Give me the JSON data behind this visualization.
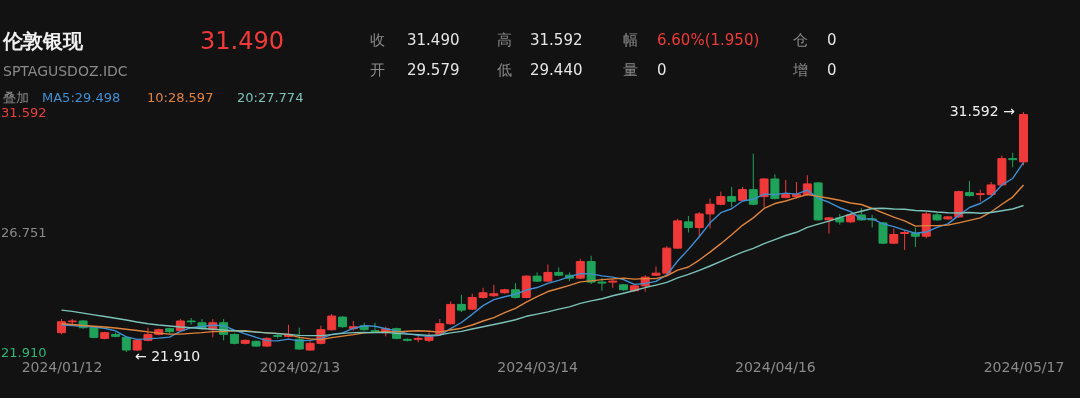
{
  "chart_data": {
    "type": "candlestick",
    "title": "伦敦银现",
    "subtitle": "SPTAGUSDOZ.IDC",
    "categories": [
      "2024/01/12",
      null,
      null,
      null,
      null,
      null,
      null,
      null,
      null,
      null,
      null,
      null,
      null,
      null,
      null,
      null,
      null,
      null,
      null,
      null,
      null,
      null,
      "2024/02/13",
      null,
      null,
      null,
      null,
      null,
      null,
      null,
      null,
      null,
      null,
      null,
      null,
      null,
      null,
      null,
      null,
      null,
      null,
      null,
      null,
      null,
      "2024/03/14",
      null,
      null,
      null,
      null,
      null,
      null,
      null,
      null,
      null,
      null,
      null,
      null,
      null,
      null,
      null,
      null,
      null,
      null,
      null,
      null,
      null,
      "2024/04/16",
      null,
      null,
      null,
      null,
      null,
      null,
      null,
      null,
      null,
      null,
      null,
      null,
      null,
      null,
      null,
      null,
      null,
      null,
      null,
      null,
      null,
      null,
      "2024/05/17"
    ],
    "ohlc": [
      [
        22.69,
        23.24,
        22.62,
        23.13
      ],
      [
        23.13,
        23.24,
        23.01,
        23.16
      ],
      [
        23.16,
        23.2,
        22.85,
        22.89
      ],
      [
        22.89,
        22.93,
        22.46,
        22.5
      ],
      [
        22.46,
        22.73,
        22.42,
        22.69
      ],
      [
        22.62,
        22.69,
        22.5,
        22.54
      ],
      [
        22.5,
        22.54,
        21.91,
        21.99
      ],
      [
        21.99,
        22.42,
        21.95,
        22.38
      ],
      [
        22.38,
        22.89,
        22.34,
        22.62
      ],
      [
        22.62,
        22.85,
        22.58,
        22.81
      ],
      [
        22.85,
        22.89,
        22.66,
        22.73
      ],
      [
        22.77,
        23.24,
        22.73,
        23.16
      ],
      [
        23.16,
        23.28,
        23.01,
        23.13
      ],
      [
        23.09,
        23.24,
        22.81,
        22.85
      ],
      [
        22.81,
        23.24,
        22.5,
        23.09
      ],
      [
        23.09,
        23.24,
        22.38,
        22.62
      ],
      [
        22.62,
        22.66,
        22.22,
        22.26
      ],
      [
        22.26,
        22.42,
        22.22,
        22.38
      ],
      [
        22.34,
        22.38,
        22.11,
        22.15
      ],
      [
        22.15,
        22.5,
        22.11,
        22.46
      ],
      [
        22.58,
        22.66,
        22.46,
        22.54
      ],
      [
        22.54,
        23.01,
        22.5,
        22.62
      ],
      [
        22.42,
        22.89,
        21.99,
        22.03
      ],
      [
        21.99,
        22.34,
        21.95,
        22.26
      ],
      [
        22.26,
        22.97,
        22.22,
        22.81
      ],
      [
        22.81,
        23.44,
        22.77,
        23.36
      ],
      [
        23.32,
        23.36,
        22.89,
        22.93
      ],
      [
        22.85,
        23.16,
        22.77,
        22.93
      ],
      [
        22.97,
        23.09,
        22.77,
        22.81
      ],
      [
        22.77,
        23.09,
        22.69,
        22.73
      ],
      [
        22.69,
        22.93,
        22.54,
        22.85
      ],
      [
        22.85,
        22.89,
        22.42,
        22.46
      ],
      [
        22.42,
        22.46,
        22.34,
        22.38
      ],
      [
        22.42,
        22.62,
        22.3,
        22.46
      ],
      [
        22.38,
        22.69,
        22.3,
        22.54
      ],
      [
        22.62,
        23.24,
        22.58,
        23.05
      ],
      [
        23.05,
        23.95,
        23.01,
        23.83
      ],
      [
        23.83,
        24.22,
        23.52,
        23.6
      ],
      [
        23.64,
        24.26,
        23.6,
        24.11
      ],
      [
        24.11,
        24.5,
        24.07,
        24.3
      ],
      [
        24.18,
        24.62,
        24.14,
        24.26
      ],
      [
        24.3,
        24.46,
        24.26,
        24.42
      ],
      [
        24.42,
        24.69,
        24.07,
        24.11
      ],
      [
        24.11,
        25.01,
        24.07,
        24.97
      ],
      [
        24.97,
        25.12,
        24.73,
        24.77
      ],
      [
        24.77,
        25.44,
        24.73,
        25.12
      ],
      [
        25.12,
        25.32,
        24.97,
        25.01
      ],
      [
        25.01,
        25.12,
        24.77,
        24.89
      ],
      [
        24.89,
        25.67,
        24.85,
        25.56
      ],
      [
        25.56,
        25.79,
        24.65,
        24.73
      ],
      [
        24.73,
        24.89,
        24.38,
        24.69
      ],
      [
        24.73,
        24.85,
        24.5,
        24.77
      ],
      [
        24.62,
        24.65,
        24.38,
        24.42
      ],
      [
        24.38,
        24.62,
        24.34,
        24.58
      ],
      [
        24.58,
        25.01,
        24.34,
        24.93
      ],
      [
        25.01,
        25.36,
        24.97,
        25.09
      ],
      [
        25.09,
        26.18,
        25.05,
        26.1
      ],
      [
        26.1,
        27.28,
        26.07,
        27.2
      ],
      [
        27.16,
        27.4,
        26.73,
        26.93
      ],
      [
        26.93,
        27.56,
        26.54,
        27.48
      ],
      [
        27.48,
        28.1,
        26.89,
        27.87
      ],
      [
        27.87,
        28.38,
        27.83,
        28.18
      ],
      [
        28.18,
        28.57,
        27.75,
        27.99
      ],
      [
        28.03,
        28.57,
        27.99,
        28.46
      ],
      [
        28.46,
        29.91,
        27.83,
        27.87
      ],
      [
        28.18,
        28.93,
        27.75,
        28.89
      ],
      [
        28.89,
        29.08,
        28.06,
        28.1
      ],
      [
        28.14,
        28.85,
        28.1,
        28.26
      ],
      [
        28.18,
        28.77,
        28.1,
        28.26
      ],
      [
        28.26,
        29.04,
        28.22,
        28.69
      ],
      [
        28.73,
        28.77,
        27.2,
        27.24
      ],
      [
        27.24,
        27.36,
        26.69,
        27.32
      ],
      [
        27.32,
        27.48,
        27.05,
        27.16
      ],
      [
        27.16,
        27.48,
        27.12,
        27.44
      ],
      [
        27.44,
        27.71,
        27.2,
        27.24
      ],
      [
        27.28,
        27.44,
        26.93,
        27.24
      ],
      [
        27.12,
        27.16,
        26.26,
        26.3
      ],
      [
        26.3,
        26.89,
        26.26,
        26.65
      ],
      [
        26.69,
        26.81,
        26.03,
        26.73
      ],
      [
        26.69,
        26.93,
        26.14,
        26.58
      ],
      [
        26.58,
        27.56,
        26.5,
        27.48
      ],
      [
        27.44,
        27.52,
        27.2,
        27.24
      ],
      [
        27.28,
        27.4,
        27.24,
        27.36
      ],
      [
        27.36,
        28.42,
        27.32,
        28.38
      ],
      [
        28.34,
        28.81,
        28.18,
        28.22
      ],
      [
        28.26,
        28.46,
        27.99,
        28.3
      ],
      [
        28.26,
        28.77,
        28.22,
        28.65
      ],
      [
        28.65,
        29.83,
        28.61,
        29.71
      ],
      [
        29.71,
        29.95,
        29.36,
        29.67
      ],
      [
        29.579,
        31.592,
        29.44,
        31.49
      ]
    ],
    "colors": [
      "#f03a3a",
      "#f03a3a",
      "#1fa35a",
      "#1fa35a",
      "#f03a3a",
      "#1fa35a",
      "#1fa35a",
      "#f03a3a",
      "#f03a3a",
      "#f03a3a",
      "#1fa35a",
      "#f03a3a",
      "#1fa35a",
      "#1fa35a",
      "#f03a3a",
      "#1fa35a",
      "#1fa35a",
      "#f03a3a",
      "#1fa35a",
      "#f03a3a",
      "#1fa35a",
      "#f03a3a",
      "#1fa35a",
      "#f03a3a",
      "#f03a3a",
      "#f03a3a",
      "#1fa35a",
      "#f03a3a",
      "#1fa35a",
      "#1fa35a",
      "#f03a3a",
      "#1fa35a",
      "#1fa35a",
      "#f03a3a",
      "#f03a3a",
      "#f03a3a",
      "#f03a3a",
      "#1fa35a",
      "#f03a3a",
      "#f03a3a",
      "#f03a3a",
      "#f03a3a",
      "#1fa35a",
      "#f03a3a",
      "#1fa35a",
      "#f03a3a",
      "#1fa35a",
      "#1fa35a",
      "#f03a3a",
      "#1fa35a",
      "#1fa35a",
      "#f03a3a",
      "#1fa35a",
      "#f03a3a",
      "#f03a3a",
      "#f03a3a",
      "#f03a3a",
      "#f03a3a",
      "#1fa35a",
      "#f03a3a",
      "#f03a3a",
      "#f03a3a",
      "#1fa35a",
      "#f03a3a",
      "#1fa35a",
      "#f03a3a",
      "#1fa35a",
      "#f03a3a",
      "#f03a3a",
      "#f03a3a",
      "#1fa35a",
      "#f03a3a",
      "#1fa35a",
      "#f03a3a",
      "#1fa35a",
      "#1fa35a",
      "#1fa35a",
      "#f03a3a",
      "#f03a3a",
      "#1fa35a",
      "#f03a3a",
      "#1fa35a",
      "#f03a3a",
      "#f03a3a",
      "#1fa35a",
      "#f03a3a",
      "#f03a3a",
      "#f03a3a",
      "#1fa35a",
      "#f03a3a"
    ],
    "series": [
      {
        "name": "MA5:29.498",
        "type": "line",
        "color": "#3f8fd2",
        "values": [
          23.0,
          22.98,
          22.95,
          22.92,
          22.87,
          22.76,
          22.52,
          22.42,
          22.44,
          22.47,
          22.51,
          22.74,
          22.89,
          22.94,
          22.99,
          22.97,
          22.79,
          22.64,
          22.5,
          22.37,
          22.36,
          22.43,
          22.36,
          22.38,
          22.45,
          22.62,
          22.68,
          22.86,
          22.97,
          22.95,
          22.85,
          22.76,
          22.65,
          22.58,
          22.54,
          22.58,
          22.85,
          23.1,
          23.43,
          23.78,
          24.02,
          24.14,
          24.24,
          24.41,
          24.51,
          24.68,
          24.8,
          24.95,
          25.07,
          25.06,
          24.98,
          24.93,
          24.83,
          24.64,
          24.68,
          24.76,
          25.02,
          25.58,
          26.05,
          26.56,
          27.12,
          27.53,
          27.69,
          28.0,
          28.07,
          28.28,
          28.26,
          28.32,
          28.28,
          28.44,
          28.11,
          27.95,
          27.73,
          27.57,
          27.28,
          27.28,
          27.08,
          26.97,
          26.83,
          26.7,
          26.75,
          26.94,
          27.08,
          27.41,
          27.74,
          27.9,
          28.18,
          28.65,
          28.91,
          29.56
        ]
      },
      {
        "name": "10:28.597",
        "type": "line",
        "color": "#e0843c",
        "values": [
          23.05,
          23.02,
          22.98,
          22.95,
          22.92,
          22.88,
          22.83,
          22.78,
          22.72,
          22.67,
          22.63,
          22.63,
          22.66,
          22.69,
          22.73,
          22.74,
          22.77,
          22.77,
          22.72,
          22.68,
          22.66,
          22.61,
          22.5,
          22.44,
          22.41,
          22.49,
          22.55,
          22.61,
          22.68,
          22.7,
          22.73,
          22.72,
          22.75,
          22.77,
          22.75,
          22.71,
          22.8,
          22.87,
          23.0,
          23.16,
          23.3,
          23.5,
          23.67,
          23.92,
          24.14,
          24.35,
          24.47,
          24.6,
          24.74,
          24.78,
          24.83,
          24.86,
          24.89,
          24.85,
          24.87,
          24.87,
          24.98,
          25.21,
          25.34,
          25.62,
          25.94,
          26.28,
          26.64,
          27.02,
          27.32,
          27.7,
          27.9,
          28.0,
          28.14,
          28.26,
          28.19,
          28.11,
          28.03,
          27.92,
          27.86,
          27.7,
          27.52,
          27.35,
          27.2,
          26.99,
          27.01,
          27.01,
          27.03,
          27.12,
          27.22,
          27.32,
          27.56,
          27.87,
          28.16,
          28.65
        ]
      },
      {
        "name": "20:27.774",
        "type": "line",
        "color": "#7cc2b8",
        "values": [
          23.6,
          23.55,
          23.48,
          23.41,
          23.34,
          23.27,
          23.2,
          23.12,
          23.05,
          23.0,
          22.96,
          22.92,
          22.89,
          22.86,
          22.83,
          22.8,
          22.77,
          22.74,
          22.71,
          22.68,
          22.65,
          22.62,
          22.58,
          22.57,
          22.57,
          22.61,
          22.66,
          22.69,
          22.7,
          22.69,
          22.7,
          22.66,
          22.63,
          22.61,
          22.58,
          22.6,
          22.68,
          22.74,
          22.84,
          22.93,
          23.02,
          23.11,
          23.21,
          23.35,
          23.44,
          23.53,
          23.64,
          23.73,
          23.87,
          23.97,
          24.06,
          24.18,
          24.28,
          24.39,
          24.51,
          24.61,
          24.72,
          24.9,
          25.04,
          25.2,
          25.38,
          25.57,
          25.76,
          25.94,
          26.09,
          26.28,
          26.44,
          26.61,
          26.74,
          26.94,
          27.07,
          27.19,
          27.33,
          27.47,
          27.59,
          27.7,
          27.71,
          27.68,
          27.67,
          27.62,
          27.6,
          27.56,
          27.53,
          27.52,
          27.54,
          27.51,
          27.54,
          27.61,
          27.68,
          27.82
        ]
      }
    ],
    "ylim": [
      21.91,
      31.592
    ],
    "yticks": [
      {
        "value": 21.91,
        "label": "21.910"
      },
      {
        "value": 26.751,
        "label": "26.751"
      },
      {
        "value": 31.592,
        "label": "31.592"
      }
    ],
    "legend": "top left",
    "annotations": [
      "31.490",
      "收",
      "31.490",
      "高",
      "31.592",
      "幅",
      "6.60%(1.950)",
      "仓",
      "0",
      "开",
      "29.579",
      "低",
      "29.440",
      "量",
      "0",
      "增",
      "0",
      "叠加",
      {
        "text": "31.592 →",
        "x": "2024/05/17",
        "y": 31.592
      },
      "← 21.910"
    ]
  }
}
